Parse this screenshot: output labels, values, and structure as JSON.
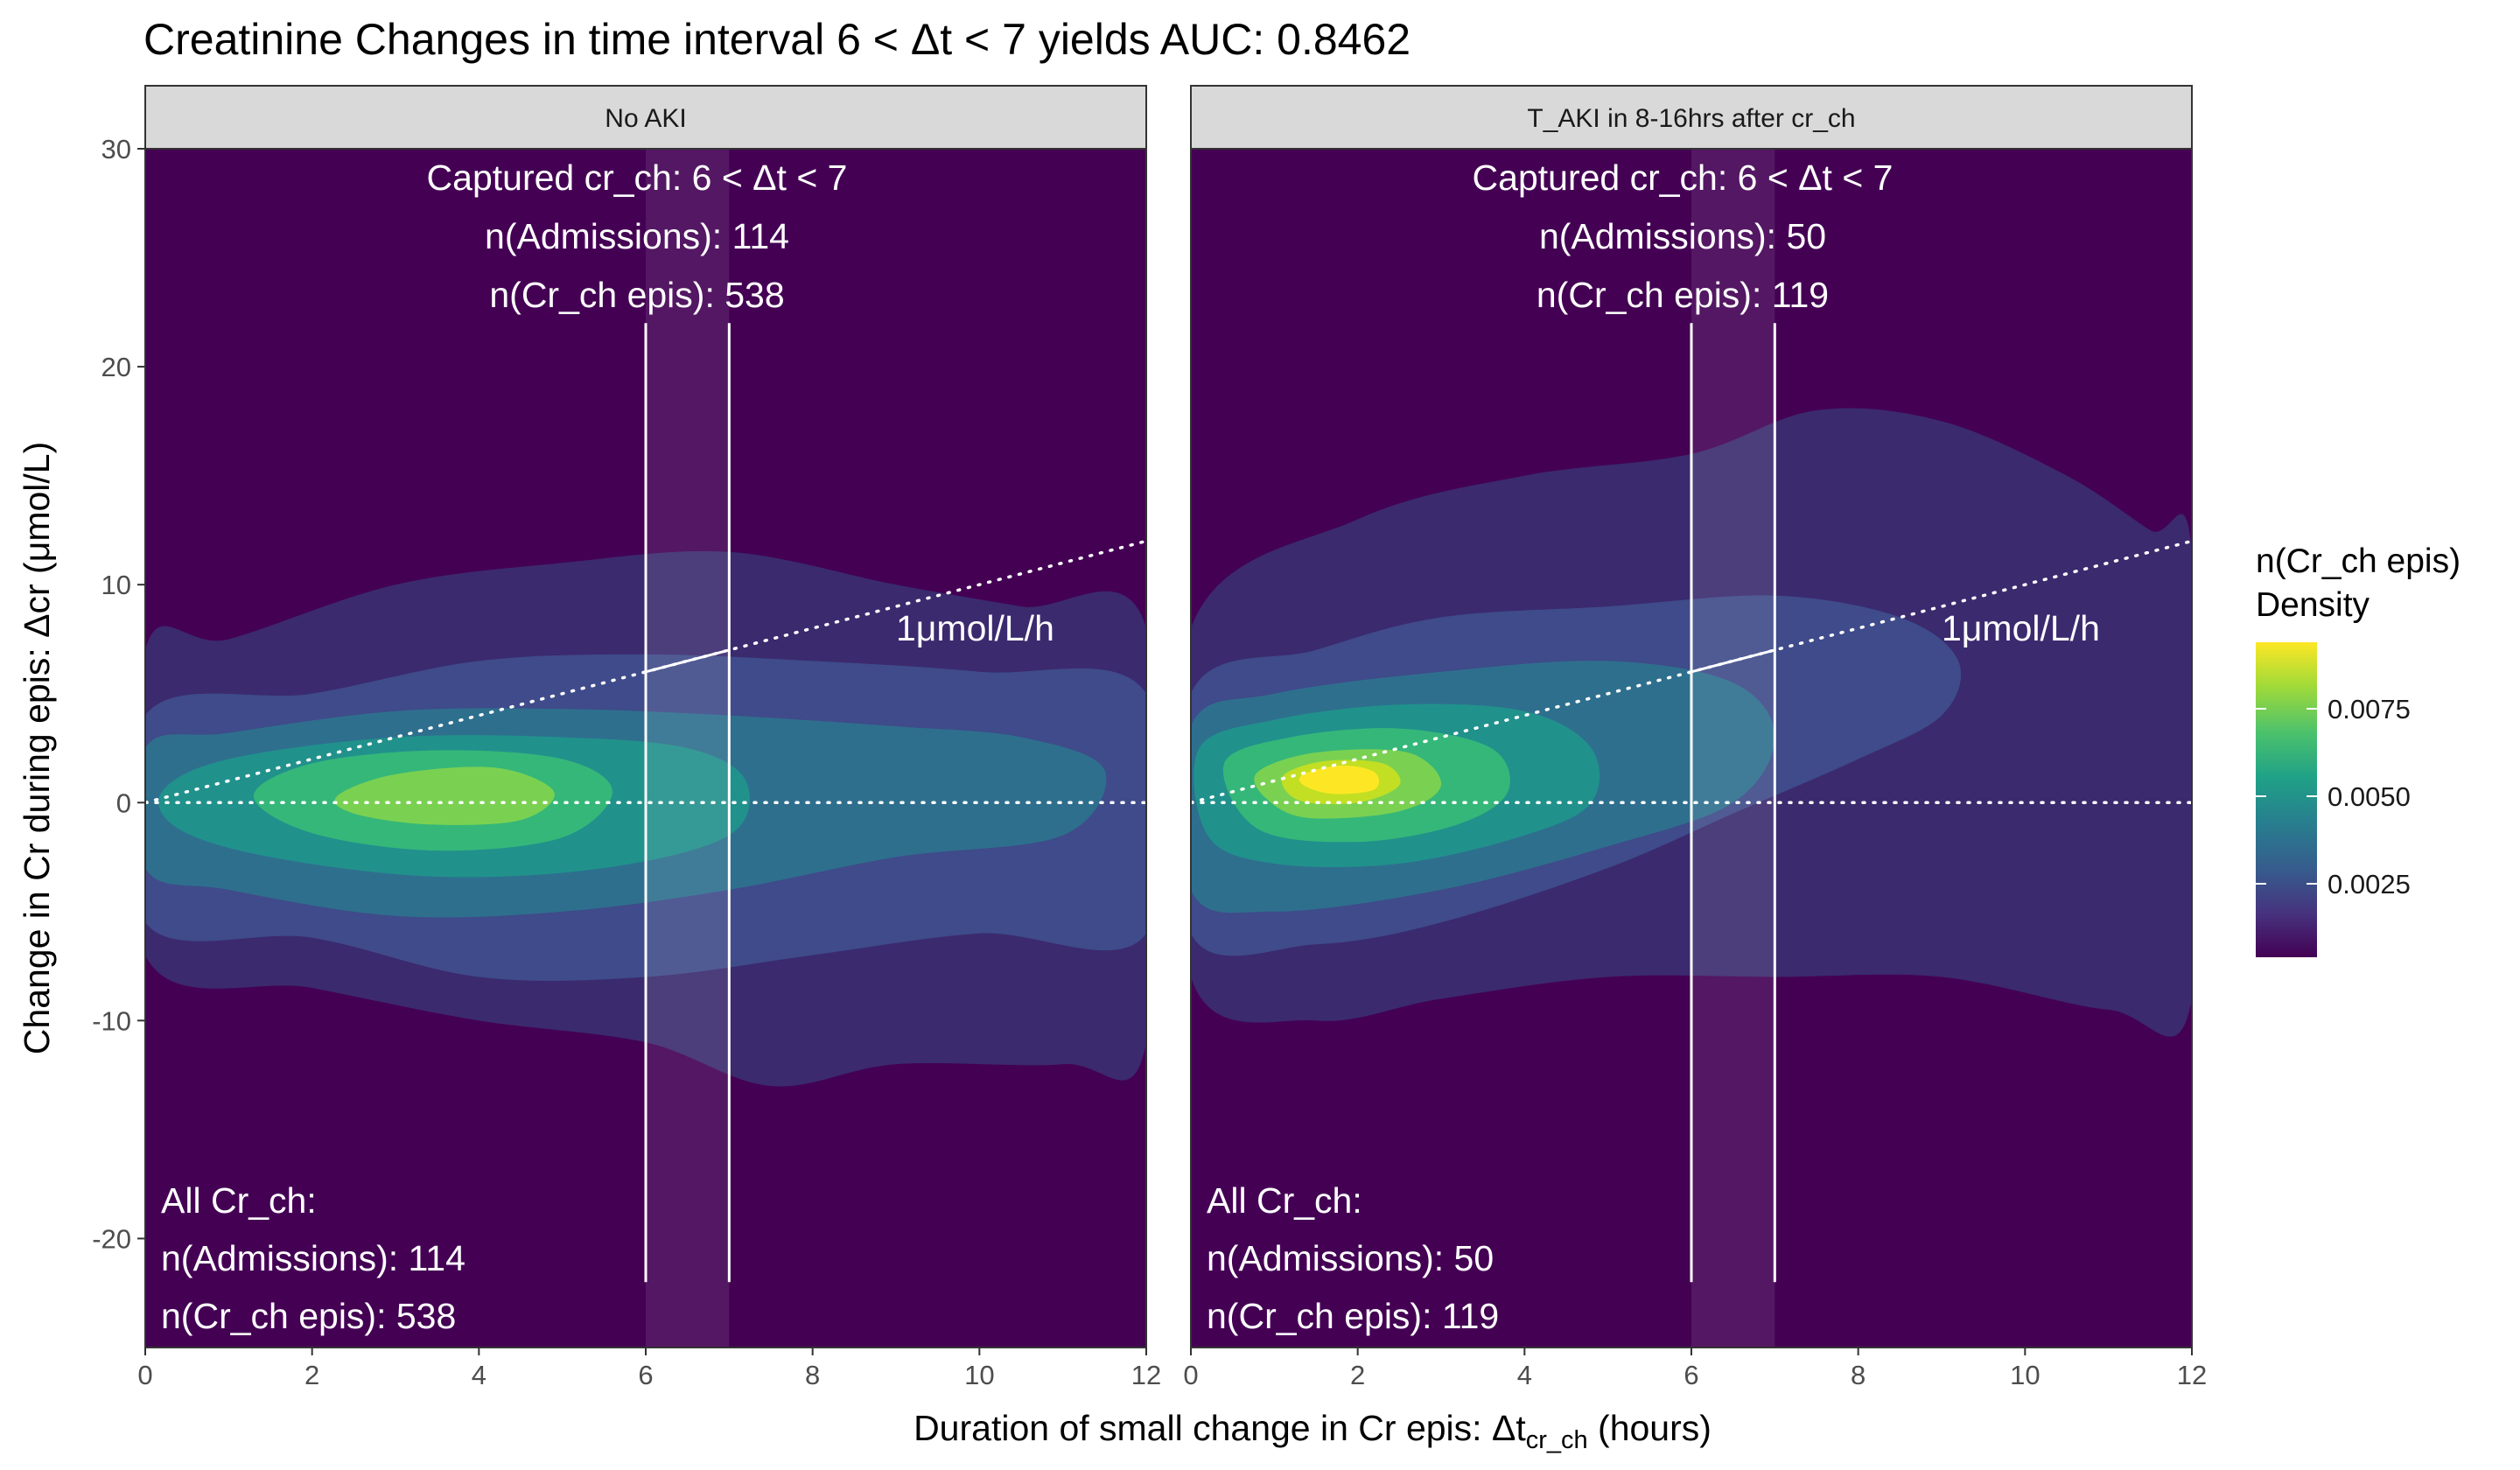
{
  "chart_data": {
    "type": "heatmap",
    "title": "Creatinine Changes in time interval 6 < Δt < 7 yields AUC: 0.8462",
    "xlabel_main": "Duration of small change in Cr epis: Δt",
    "xlabel_sub": "cr_ch",
    "xlabel_suffix": " (hours)",
    "ylabel": "Change in Cr during epis: Δcr (μmol/L)",
    "xlim": [
      0,
      12
    ],
    "ylim": [
      -25,
      30
    ],
    "x_ticks": [
      "0",
      "2",
      "4",
      "6",
      "8",
      "10",
      "12"
    ],
    "y_ticks": [
      "-20",
      "-10",
      "0",
      "10",
      "20",
      "30"
    ],
    "grid": false,
    "highlight_interval": [
      6,
      7
    ],
    "reference_line": {
      "label": "1μmol/L/h",
      "slope": 1,
      "intercept": 0,
      "label_x": 9,
      "label_y": 8
    },
    "legend": {
      "title_line1": "n(Cr_ch epis)",
      "title_line2": "Density",
      "ticks": [
        "0.0025",
        "0.0050",
        "0.0075"
      ],
      "tick_values": [
        0.0025,
        0.005,
        0.0075
      ],
      "range": [
        0.0004,
        0.0094
      ],
      "colors": [
        "#440154",
        "#46337e",
        "#365c8d",
        "#277f8e",
        "#1fa187",
        "#4ac16d",
        "#a0da39",
        "#fde725"
      ],
      "placement": "right"
    },
    "panels": [
      {
        "strip_label": "No AKI",
        "captured_line1": "Captured cr_ch: 6 < Δt < 7",
        "captured_line2": "n(Admissions): 114",
        "captured_line3": "n(Cr_ch epis): 538",
        "all_line1": "All Cr_ch:",
        "all_line2": "n(Admissions): 114",
        "all_line3": "n(Cr_ch epis): 538",
        "density_peak": {
          "x": 4.0,
          "y": 0.3,
          "value": 0.0072
        },
        "density_levels": [
          {
            "level": 1,
            "color": "#3b2a6e",
            "points": [
              [
                0,
                7
              ],
              [
                1,
                7.5
              ],
              [
                3,
                10
              ],
              [
                5,
                11
              ],
              [
                7,
                11.5
              ],
              [
                9,
                10
              ],
              [
                10.5,
                9
              ],
              [
                12,
                8
              ],
              [
                12,
                -11
              ],
              [
                11,
                -12
              ],
              [
                9,
                -12
              ],
              [
                7.5,
                -13
              ],
              [
                6,
                -11
              ],
              [
                4,
                -10
              ],
              [
                2,
                -8.5
              ],
              [
                0,
                -7
              ]
            ]
          },
          {
            "level": 2,
            "color": "#3f4b8a",
            "points": [
              [
                0,
                4
              ],
              [
                2,
                5
              ],
              [
                4,
                6.5
              ],
              [
                6,
                6.8
              ],
              [
                8,
                6.5
              ],
              [
                10,
                6
              ],
              [
                12,
                5
              ],
              [
                12,
                -6
              ],
              [
                10,
                -6
              ],
              [
                8,
                -7
              ],
              [
                6,
                -8
              ],
              [
                4,
                -8
              ],
              [
                2,
                -6.2
              ],
              [
                0,
                -5.5
              ]
            ]
          },
          {
            "level": 3,
            "color": "#2e6f8e",
            "points": [
              [
                0,
                2.5
              ],
              [
                1,
                3.2
              ],
              [
                3,
                4.2
              ],
              [
                5,
                4.3
              ],
              [
                7,
                4
              ],
              [
                9,
                3.5
              ],
              [
                10.5,
                3
              ],
              [
                11.5,
                1.5
              ],
              [
                11,
                -1.5
              ],
              [
                9,
                -2.5
              ],
              [
                7,
                -4
              ],
              [
                5,
                -5
              ],
              [
                3,
                -5.2
              ],
              [
                1,
                -4
              ],
              [
                0,
                -3
              ]
            ]
          },
          {
            "level": 4,
            "color": "#21918c",
            "points": [
              [
                0.2,
                0.5
              ],
              [
                1,
                2
              ],
              [
                3,
                3
              ],
              [
                5,
                3
              ],
              [
                6.5,
                2.5
              ],
              [
                7.2,
                1
              ],
              [
                7,
                -1.5
              ],
              [
                5.5,
                -3
              ],
              [
                3.5,
                -3.4
              ],
              [
                1.5,
                -2.5
              ],
              [
                0.4,
                -1.2
              ]
            ]
          },
          {
            "level": 5,
            "color": "#35b779",
            "points": [
              [
                1.3,
                0.3
              ],
              [
                2,
                1.8
              ],
              [
                3.5,
                2.4
              ],
              [
                5,
                2
              ],
              [
                5.6,
                0.5
              ],
              [
                5,
                -1.6
              ],
              [
                3.5,
                -2.2
              ],
              [
                2,
                -1.4
              ]
            ]
          },
          {
            "level": 6,
            "color": "#7ad151",
            "points": [
              [
                2.3,
                0.3
              ],
              [
                3,
                1.3
              ],
              [
                4.2,
                1.6
              ],
              [
                4.9,
                0.5
              ],
              [
                4.5,
                -0.8
              ],
              [
                3.4,
                -1
              ],
              [
                2.5,
                -0.5
              ]
            ]
          }
        ]
      },
      {
        "strip_label": "T_AKI in  8-16hrs after cr_ch",
        "captured_line1": "Captured cr_ch: 6 < Δt < 7",
        "captured_line2": "n(Admissions): 50",
        "captured_line3": "n(Cr_ch epis): 119",
        "all_line1": "All Cr_ch:",
        "all_line2": "n(Admissions): 50",
        "all_line3": "n(Cr_ch epis): 119",
        "density_peak": {
          "x": 1.8,
          "y": 1.0,
          "value": 0.0094
        },
        "density_levels": [
          {
            "level": 1,
            "color": "#3b2a6e",
            "points": [
              [
                0,
                8
              ],
              [
                2,
                13
              ],
              [
                4,
                15
              ],
              [
                6,
                16
              ],
              [
                7.5,
                18
              ],
              [
                9,
                17.5
              ],
              [
                10.5,
                15
              ],
              [
                11.5,
                12.5
              ],
              [
                12,
                11.5
              ],
              [
                12,
                -9
              ],
              [
                11,
                -9.5
              ],
              [
                9,
                -8
              ],
              [
                7,
                -8
              ],
              [
                5,
                -8
              ],
              [
                3,
                -9
              ],
              [
                1.5,
                -10
              ],
              [
                0,
                -8
              ]
            ]
          },
          {
            "level": 2,
            "color": "#3f4b8a",
            "points": [
              [
                0,
                5
              ],
              [
                1.5,
                7
              ],
              [
                3,
                8.5
              ],
              [
                5,
                9
              ],
              [
                7,
                9.5
              ],
              [
                8.5,
                8.5
              ],
              [
                9.2,
                6.5
              ],
              [
                9,
                4
              ],
              [
                8,
                2
              ],
              [
                6.5,
                -0.5
              ],
              [
                5,
                -3
              ],
              [
                3,
                -5.5
              ],
              [
                1.5,
                -6.5
              ],
              [
                0,
                -6
              ]
            ]
          },
          {
            "level": 3,
            "color": "#2e6f8e",
            "points": [
              [
                0,
                3.5
              ],
              [
                1,
                5
              ],
              [
                3,
                6
              ],
              [
                5,
                6.5
              ],
              [
                6.5,
                5.5
              ],
              [
                7,
                3
              ],
              [
                6.5,
                0
              ],
              [
                5,
                -2
              ],
              [
                3,
                -4
              ],
              [
                1,
                -5
              ],
              [
                0,
                -4
              ]
            ]
          },
          {
            "level": 4,
            "color": "#21918c",
            "points": [
              [
                0.1,
                2.5
              ],
              [
                1,
                3.8
              ],
              [
                2.5,
                4.5
              ],
              [
                4,
                4.2
              ],
              [
                4.8,
                2.5
              ],
              [
                4.8,
                0
              ],
              [
                4,
                -1.5
              ],
              [
                2.5,
                -2.8
              ],
              [
                1,
                -2.8
              ],
              [
                0.2,
                -1.5
              ]
            ]
          },
          {
            "level": 5,
            "color": "#35b779",
            "points": [
              [
                0.4,
                1.8
              ],
              [
                1.2,
                3
              ],
              [
                2.5,
                3.4
              ],
              [
                3.6,
                2.5
              ],
              [
                3.8,
                0.5
              ],
              [
                3.2,
                -1
              ],
              [
                2,
                -1.8
              ],
              [
                0.8,
                -1.2
              ]
            ]
          },
          {
            "level": 6,
            "color": "#7ad151",
            "points": [
              [
                0.8,
                1.4
              ],
              [
                1.5,
                2.3
              ],
              [
                2.6,
                2.3
              ],
              [
                3,
                0.8
              ],
              [
                2.5,
                -0.4
              ],
              [
                1.4,
                -0.7
              ],
              [
                0.9,
                0.2
              ]
            ]
          },
          {
            "level": 7,
            "color": "#c2df23",
            "points": [
              [
                1.1,
                1.2
              ],
              [
                1.6,
                1.9
              ],
              [
                2.3,
                1.8
              ],
              [
                2.5,
                0.8
              ],
              [
                2,
                0
              ],
              [
                1.3,
                0.1
              ]
            ]
          },
          {
            "level": 8,
            "color": "#fde725",
            "points": [
              [
                1.35,
                1.3
              ],
              [
                1.8,
                1.7
              ],
              [
                2.2,
                1.4
              ],
              [
                2.2,
                0.6
              ],
              [
                1.7,
                0.4
              ],
              [
                1.35,
                0.8
              ]
            ]
          }
        ]
      }
    ]
  },
  "colors": {
    "panel_background": "#440154",
    "strip_fill": "#d9d9d9",
    "frame": "#333333",
    "highlight_band": "#ffffff",
    "overlay_line": "#ffffff"
  }
}
